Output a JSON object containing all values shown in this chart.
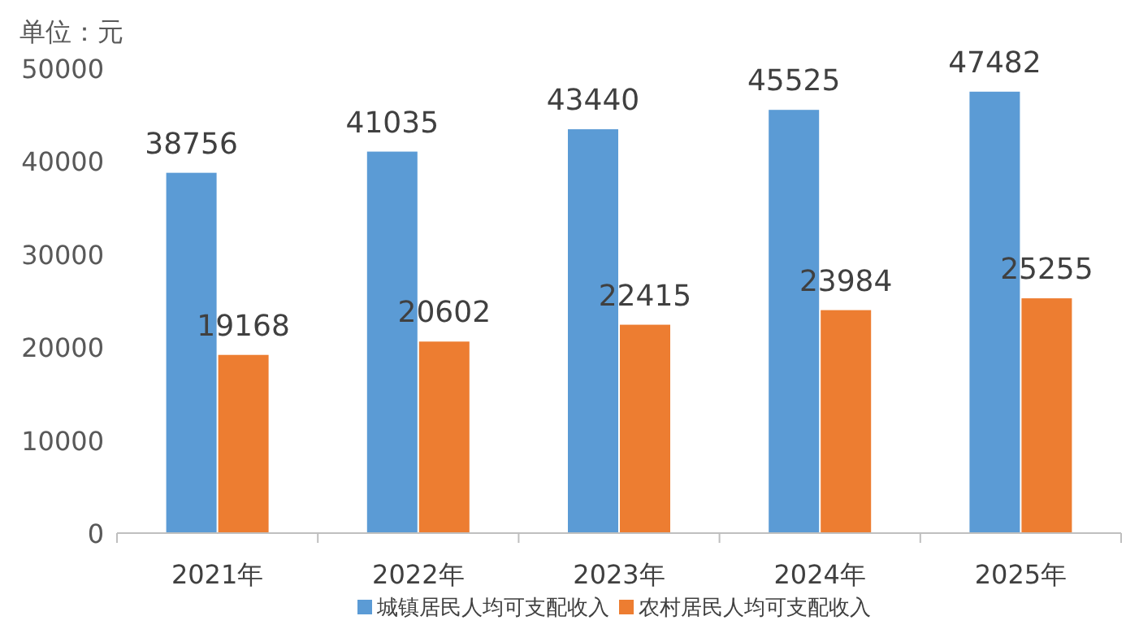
{
  "chart_data": {
    "type": "bar",
    "ylabel": "单位：元",
    "categories": [
      "2021年",
      "2022年",
      "2023年",
      "2024年",
      "2025年"
    ],
    "series": [
      {
        "name": "城镇居民人均可支配收入",
        "color": "#5b9bd5",
        "values": [
          38756,
          41035,
          43440,
          45525,
          47482
        ]
      },
      {
        "name": "农村居民人均可支配收入",
        "color": "#ed7d31",
        "values": [
          19168,
          20602,
          22415,
          23984,
          25255
        ]
      }
    ],
    "ylim": [
      0,
      50000
    ],
    "yticks": [
      0,
      10000,
      20000,
      30000,
      40000,
      50000
    ],
    "data_labels": true,
    "legend": "bottom"
  }
}
